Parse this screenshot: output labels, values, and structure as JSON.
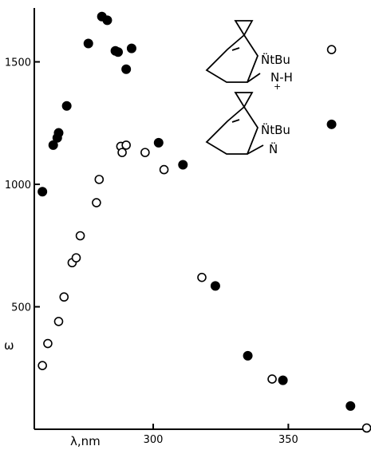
{
  "chart_data": {
    "type": "scatter",
    "title": "",
    "xlabel": "λ,nm",
    "ylabel": "ω",
    "xlim": [
      256,
      380
    ],
    "ylim": [
      0,
      1720
    ],
    "x_ticks": [
      {
        "value": 300,
        "label": "300"
      },
      {
        "value": 350,
        "label": "350"
      }
    ],
    "y_ticks": [
      {
        "value": 500,
        "label": "500"
      },
      {
        "value": 1000,
        "label": "1000"
      },
      {
        "value": 1500,
        "label": "1500"
      }
    ],
    "series": [
      {
        "marker": "filled",
        "x": [
          259,
          263,
          264.5,
          265,
          268,
          276,
          281,
          283,
          286,
          287,
          290,
          292,
          302,
          311,
          323,
          335,
          348,
          366,
          373
        ],
        "y": [
          970,
          1160,
          1190,
          1210,
          1320,
          1575,
          1685,
          1670,
          1545,
          1540,
          1470,
          1555,
          1170,
          1080,
          585,
          300,
          200,
          1245,
          95
        ]
      },
      {
        "marker": "open",
        "x": [
          259,
          261,
          265,
          267,
          270,
          271.5,
          273,
          279,
          280,
          288,
          288.5,
          290,
          297,
          304,
          318,
          344,
          366,
          379
        ],
        "y": [
          260,
          350,
          440,
          540,
          680,
          700,
          790,
          925,
          1020,
          1155,
          1130,
          1160,
          1130,
          1060,
          620,
          205,
          1550,
          5
        ]
      }
    ],
    "annotations": {
      "structure1_labels": [
        "N̈tBu",
        "N-H",
        "+"
      ],
      "structure2_labels": [
        "N̈tBu",
        "N̈"
      ]
    }
  }
}
